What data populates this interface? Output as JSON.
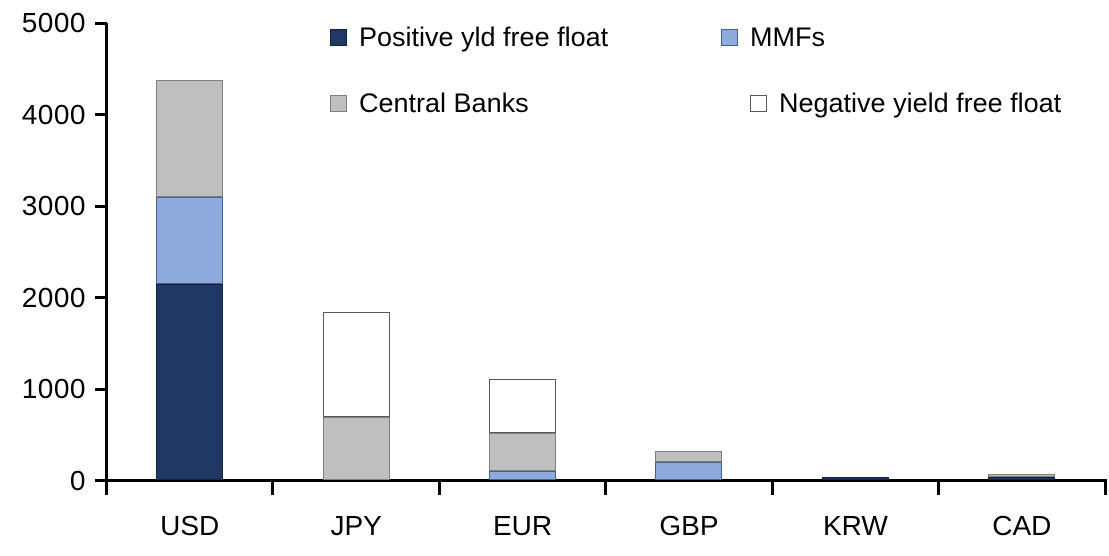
{
  "chart_data": {
    "type": "bar",
    "stacked": true,
    "title": "",
    "xlabel": "",
    "ylabel": "",
    "categories": [
      "USD",
      "JPY",
      "EUR",
      "GBP",
      "KRW",
      "CAD"
    ],
    "series": [
      {
        "name": "Positive yld free float",
        "color": "#1F3864",
        "border_color": "#14213F",
        "values": [
          2150,
          0,
          0,
          0,
          40,
          35
        ]
      },
      {
        "name": "MMFs",
        "color": "#8FAADC",
        "border_color": "#44618F",
        "values": [
          950,
          0,
          100,
          200,
          0,
          0
        ]
      },
      {
        "name": "Central Banks",
        "color": "#BFBFBF",
        "border_color": "#7F7F7F",
        "values": [
          1280,
          690,
          420,
          120,
          0,
          35
        ]
      },
      {
        "name": "Negative yield free float",
        "color": "#FFFFFF",
        "border_color": "#595959",
        "values": [
          0,
          1150,
          590,
          0,
          0,
          0
        ]
      }
    ],
    "ylim": [
      0,
      5000
    ],
    "yticks": [
      0,
      1000,
      2000,
      3000,
      4000,
      5000
    ],
    "grid": false,
    "legend_position": "top-inside",
    "legend_rows": [
      [
        "Positive yld free float",
        "MMFs"
      ],
      [
        "Central Banks",
        "Negative yield free float"
      ]
    ],
    "axis_color": "#000000",
    "background_color": "#FFFFFF"
  }
}
